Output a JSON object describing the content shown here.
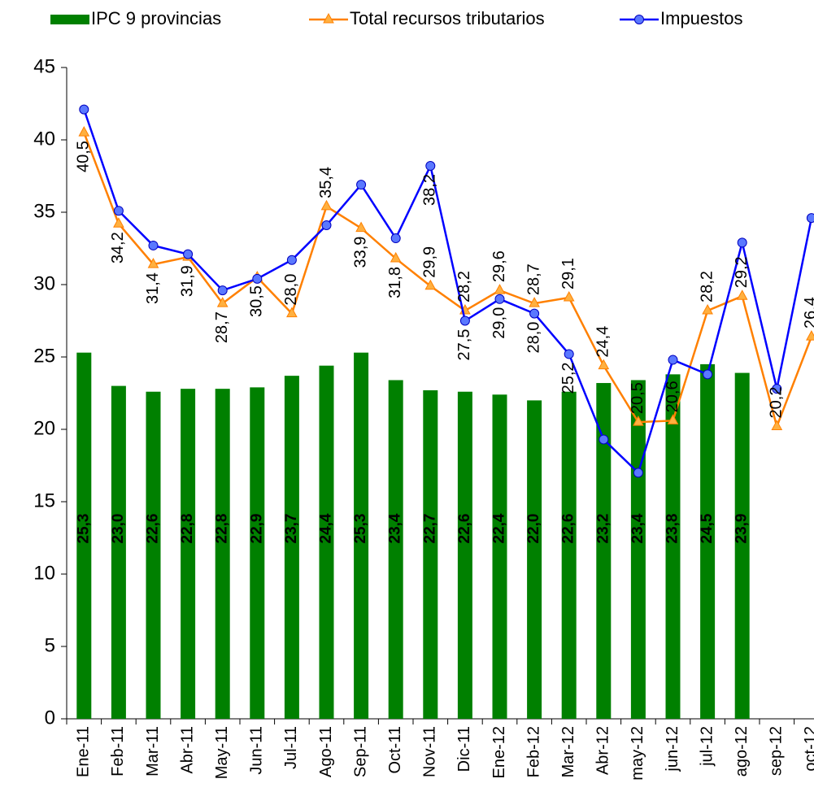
{
  "chart_data": {
    "type": "bar-line",
    "categories": [
      "Ene-11",
      "Feb-11",
      "Mar-11",
      "Abr-11",
      "May-11",
      "Jun-11",
      "Jul-11",
      "Ago-11",
      "Sep-11",
      "Oct-11",
      "Nov-11",
      "Dic-11",
      "Ene-12",
      "Feb-12",
      "Mar-12",
      "Abr-12",
      "may-12",
      "jun-12",
      "jul-12",
      "ago-12",
      "sep-12",
      "oct-12"
    ],
    "series": [
      {
        "name": "IPC 9 provincias",
        "kind": "bar",
        "color": "#008000",
        "values": [
          25.3,
          23.0,
          22.6,
          22.8,
          22.8,
          22.9,
          23.7,
          24.4,
          25.3,
          23.4,
          22.7,
          22.6,
          22.4,
          22.0,
          22.6,
          23.2,
          23.4,
          23.8,
          24.5,
          23.9,
          null,
          null
        ],
        "value_labels": [
          "25,3",
          "23,0",
          "22,6",
          "22,8",
          "22,8",
          "22,9",
          "23,7",
          "24,4",
          "25,3",
          "23,4",
          "22,7",
          "22,6",
          "22,4",
          "22,0",
          "22,6",
          "23,2",
          "23,4",
          "23,8",
          "24,5",
          "23,9",
          null,
          null
        ]
      },
      {
        "name": "Total recursos tributarios",
        "kind": "line",
        "color": "#FF8000",
        "marker": "triangle",
        "values": [
          40.5,
          34.2,
          31.4,
          31.9,
          28.7,
          30.5,
          28.0,
          35.4,
          33.9,
          31.8,
          29.9,
          28.2,
          29.6,
          28.7,
          29.1,
          24.4,
          20.5,
          20.6,
          28.2,
          29.2,
          20.2,
          26.4
        ],
        "value_labels": [
          "40,5",
          "34,2",
          "31,4",
          "31,9",
          "28,7",
          "30,5",
          "28,0",
          "35,4",
          "33,9",
          "31,8",
          "29,9",
          "28,2",
          "29,6",
          "28,7",
          "29,1",
          "24,4",
          "20,5",
          "20,6",
          "28,2",
          "29,2",
          "20,2",
          "26,4"
        ]
      },
      {
        "name": "Impuestos",
        "kind": "line",
        "color": "#0000FF",
        "marker": "circle",
        "values": [
          42.1,
          35.1,
          32.7,
          32.1,
          29.6,
          30.4,
          31.7,
          34.1,
          36.9,
          33.2,
          38.2,
          27.5,
          29.0,
          28.0,
          25.2,
          19.3,
          17.0,
          24.8,
          23.8,
          32.9,
          22.8,
          34.6
        ],
        "value_labels": [
          null,
          null,
          null,
          null,
          null,
          null,
          null,
          null,
          null,
          null,
          "38,2",
          "27,5",
          "29,0",
          "28,0",
          "25,2",
          null,
          null,
          null,
          null,
          null,
          null,
          null
        ]
      }
    ],
    "ylim": [
      0,
      45
    ],
    "yticks": [
      0,
      5,
      10,
      15,
      20,
      25,
      30,
      35,
      40,
      45
    ],
    "grid": false
  }
}
